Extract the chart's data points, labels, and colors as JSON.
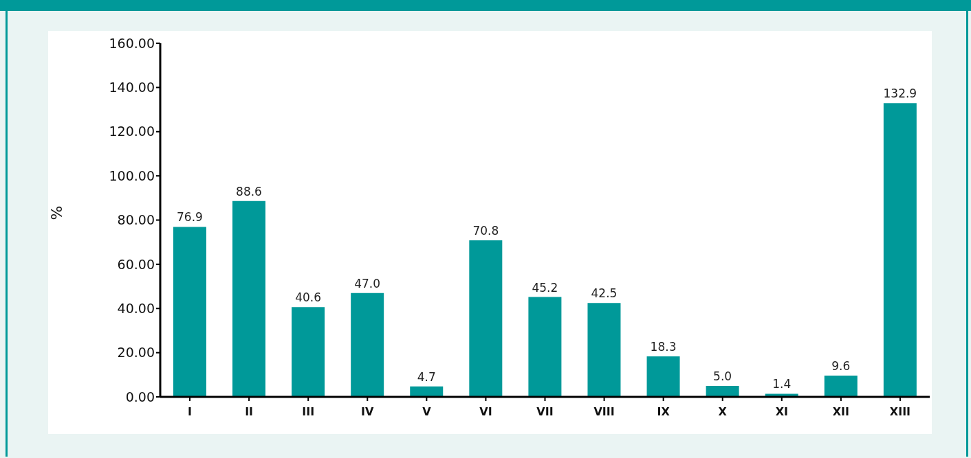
{
  "chart_data": {
    "type": "bar",
    "categories": [
      "I",
      "II",
      "III",
      "IV",
      "V",
      "VI",
      "VII",
      "VIII",
      "IX",
      "X",
      "XI",
      "XII",
      "XIII"
    ],
    "values": [
      76.9,
      88.6,
      40.6,
      47.0,
      4.7,
      70.8,
      45.2,
      42.5,
      18.3,
      5.0,
      1.4,
      9.6,
      132.9
    ],
    "value_labels": [
      "76.9",
      "88.6",
      "40.6",
      "47.0",
      "4.7",
      "70.8",
      "45.2",
      "42.5",
      "18.3",
      "5.0",
      "1.4",
      "9.6",
      "132.9"
    ],
    "color": "#009999",
    "ylabel": "%",
    "ylim": [
      0,
      160
    ],
    "yticks": [
      {
        "value": 0,
        "label": "0.00"
      },
      {
        "value": 20,
        "label": "20.00"
      },
      {
        "value": 40,
        "label": "40.00"
      },
      {
        "value": 60,
        "label": "60.00"
      },
      {
        "value": 80,
        "label": "80.00"
      },
      {
        "value": 100,
        "label": "100.00"
      },
      {
        "value": 120,
        "label": "120.00"
      },
      {
        "value": 140,
        "label": "140.00"
      },
      {
        "value": 160,
        "label": "160.00"
      }
    ],
    "grid": false,
    "legend": false
  }
}
